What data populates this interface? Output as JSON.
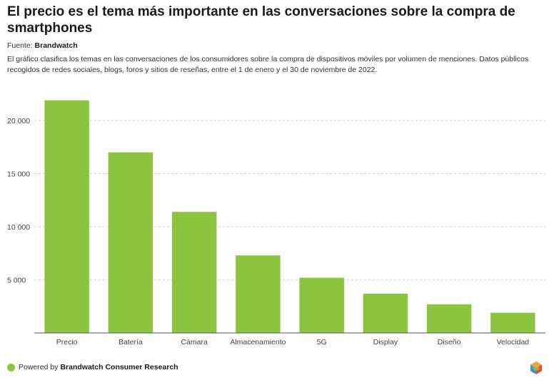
{
  "header": {
    "title": "El precio es el tema más importante en las conversaciones sobre la compra de smartphones",
    "source_label": "Fuente:",
    "source_name": "Brandwatch",
    "description": "El gráfico clasifica los temas en las conversaciones de los consumidores sobre la compra de dispositivos móviles por volumen de menciones. Datos públicos recogidos de redes sociales, blogs, foros y sitios de reseñas, entre el 1 de enero y el 30 de noviembre de 2022."
  },
  "footer": {
    "powered_label": "Powered by",
    "powered_name": "Brandwatch Consumer Research",
    "icon": "brandwatch-hexagon-logo-icon"
  },
  "colors": {
    "bar": "#8bc540",
    "grid": "#d0d0d0",
    "axis": "#555555"
  },
  "chart_data": {
    "type": "bar",
    "title": "",
    "xlabel": "",
    "ylabel": "",
    "categories": [
      "Precio",
      "Batería",
      "Cámara",
      "Almacenamiento",
      "5G",
      "Display",
      "Diseño",
      "Velocidad"
    ],
    "values": [
      21900,
      17000,
      11400,
      7300,
      5200,
      3700,
      2700,
      1900
    ],
    "ylim": [
      0,
      22000
    ],
    "yticks": [
      5000,
      10000,
      15000,
      20000
    ],
    "ytick_labels": [
      "5 000",
      "10 000",
      "15 000",
      "20 000"
    ],
    "grid": true,
    "legend": false
  }
}
